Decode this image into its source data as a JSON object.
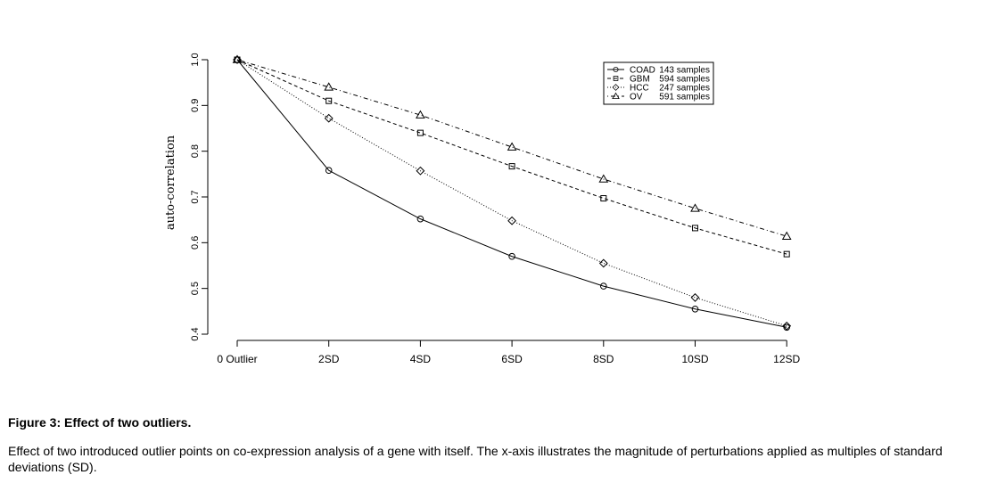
{
  "chart_data": {
    "type": "line",
    "title": "",
    "xlabel": "",
    "ylabel": "auto-correlation",
    "categories": [
      "0 Outlier",
      "2SD",
      "4SD",
      "6SD",
      "8SD",
      "10SD",
      "12SD"
    ],
    "ylim": [
      0.4,
      1.0
    ],
    "yticks": [
      "0.4",
      "0.5",
      "0.6",
      "0.7",
      "0.8",
      "0.9",
      "1.0"
    ],
    "grid": false,
    "legend_position": "top-right",
    "series": [
      {
        "name": "COAD",
        "samples": "143 samples",
        "marker": "circle",
        "line_style": "solid",
        "values": [
          1.0,
          0.758,
          0.652,
          0.57,
          0.505,
          0.455,
          0.415
        ]
      },
      {
        "name": "GBM",
        "samples": "594 samples",
        "marker": "square",
        "line_style": "dashed",
        "values": [
          1.0,
          0.91,
          0.84,
          0.767,
          0.697,
          0.632,
          0.575
        ]
      },
      {
        "name": "HCC",
        "samples": "247 samples",
        "marker": "diamond",
        "line_style": "dotted",
        "values": [
          1.0,
          0.872,
          0.757,
          0.648,
          0.555,
          0.48,
          0.418
        ]
      },
      {
        "name": "OV",
        "samples": "591 samples",
        "marker": "triangle",
        "line_style": "dotdash",
        "values": [
          1.0,
          0.94,
          0.879,
          0.809,
          0.739,
          0.675,
          0.614
        ]
      }
    ]
  },
  "caption": {
    "title": "Figure 3: Effect of two outliers.",
    "body": "Effect of two introduced outlier points on co-expression analysis of a gene with itself. The x-axis illustrates the magnitude of perturbations applied as multiples of standard deviations (SD)."
  }
}
